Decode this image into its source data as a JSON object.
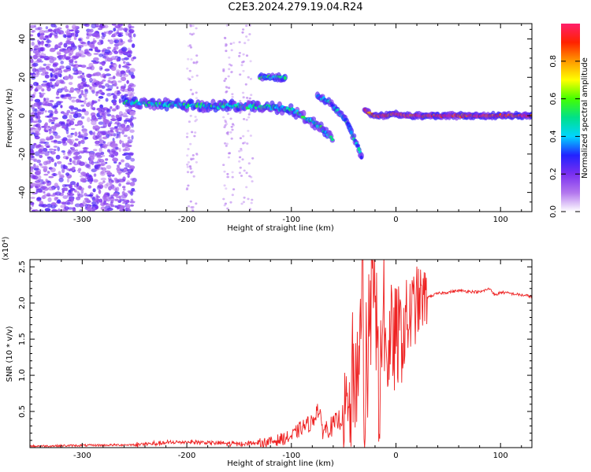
{
  "title": "C2E3.2024.279.19.04.R24",
  "chart_data": [
    {
      "type": "heatmap",
      "xlabel": "Height of straight line (km)",
      "ylabel": "Frequency (Hz)",
      "xlim": [
        -350,
        130
      ],
      "ylim": [
        -50,
        48
      ],
      "xticks": [
        -300,
        -200,
        -100,
        0,
        100
      ],
      "yticks": [
        -40,
        -20,
        0,
        20,
        40
      ],
      "colorbar": {
        "label": "Normalized spectral amplitude",
        "range": [
          0,
          1
        ],
        "ticks": [
          0.0,
          0.2,
          0.4,
          0.6,
          0.8
        ],
        "colors": [
          "#ffffff",
          "#b377ee",
          "#7a2ff0",
          "#2222ff",
          "#00d5ff",
          "#00e08a",
          "#44ff00",
          "#ffff00",
          "#ff9900",
          "#ff2200",
          "#ff1f6b"
        ]
      },
      "grid": false,
      "ridges": [
        {
          "x": [
            -260,
            -240,
            -220,
            -200,
            -180,
            -160,
            -140,
            -120,
            -100,
            -90,
            -80,
            -70,
            -60
          ],
          "y": [
            7,
            6.5,
            6,
            5.5,
            5,
            5,
            5,
            4.5,
            3,
            0,
            -3,
            -7,
            -12
          ]
        },
        {
          "x": [
            -130,
            -125,
            -120,
            -115,
            -110,
            -105
          ],
          "y": [
            20,
            20,
            20,
            20,
            20,
            20
          ]
        },
        {
          "x": [
            -75,
            -65,
            -55,
            -45,
            -40,
            -35,
            -32
          ],
          "y": [
            10,
            8,
            2,
            -5,
            -12,
            -18,
            -24
          ]
        },
        {
          "x": [
            -30,
            -25,
            -20,
            -10,
            0,
            10,
            50,
            90,
            130
          ],
          "y": [
            3,
            1,
            0,
            0,
            1,
            0,
            0,
            0,
            0
          ]
        }
      ]
    },
    {
      "type": "line",
      "xlabel": "Height of straight line (km)",
      "ylabel": "SNR (10 * v/v)",
      "yunit": "(x10⁴)",
      "xlim": [
        -350,
        130
      ],
      "ylim": [
        0,
        2.6
      ],
      "xticks": [
        -300,
        -200,
        -100,
        0,
        100
      ],
      "yticks": [
        0.5,
        1.0,
        1.5,
        2.0,
        2.5
      ],
      "color": "#ee2222",
      "grid": false,
      "series": [
        {
          "x": [
            -350,
            -300,
            -250,
            -200,
            -150,
            -120,
            -100,
            -90,
            -80,
            -75,
            -70,
            -60,
            -50,
            -45,
            -40,
            -35,
            -32,
            -30,
            -28,
            -25,
            -20,
            -15,
            -12,
            -10,
            -5,
            0,
            5,
            10,
            20,
            30,
            40,
            50,
            60,
            70,
            80,
            90,
            95,
            100,
            110,
            120,
            130
          ],
          "y": [
            0.02,
            0.03,
            0.04,
            0.08,
            0.05,
            0.08,
            0.15,
            0.28,
            0.35,
            0.55,
            0.25,
            0.3,
            0.45,
            0.4,
            0.8,
            1.3,
            2.6,
            0.2,
            1.2,
            1.9,
            2.1,
            0.5,
            2.55,
            1.1,
            1.45,
            1.5,
            1.55,
            1.7,
            2.0,
            2.08,
            2.13,
            2.15,
            2.17,
            2.16,
            2.15,
            2.2,
            2.1,
            2.15,
            2.13,
            2.11,
            2.09
          ]
        }
      ]
    }
  ]
}
